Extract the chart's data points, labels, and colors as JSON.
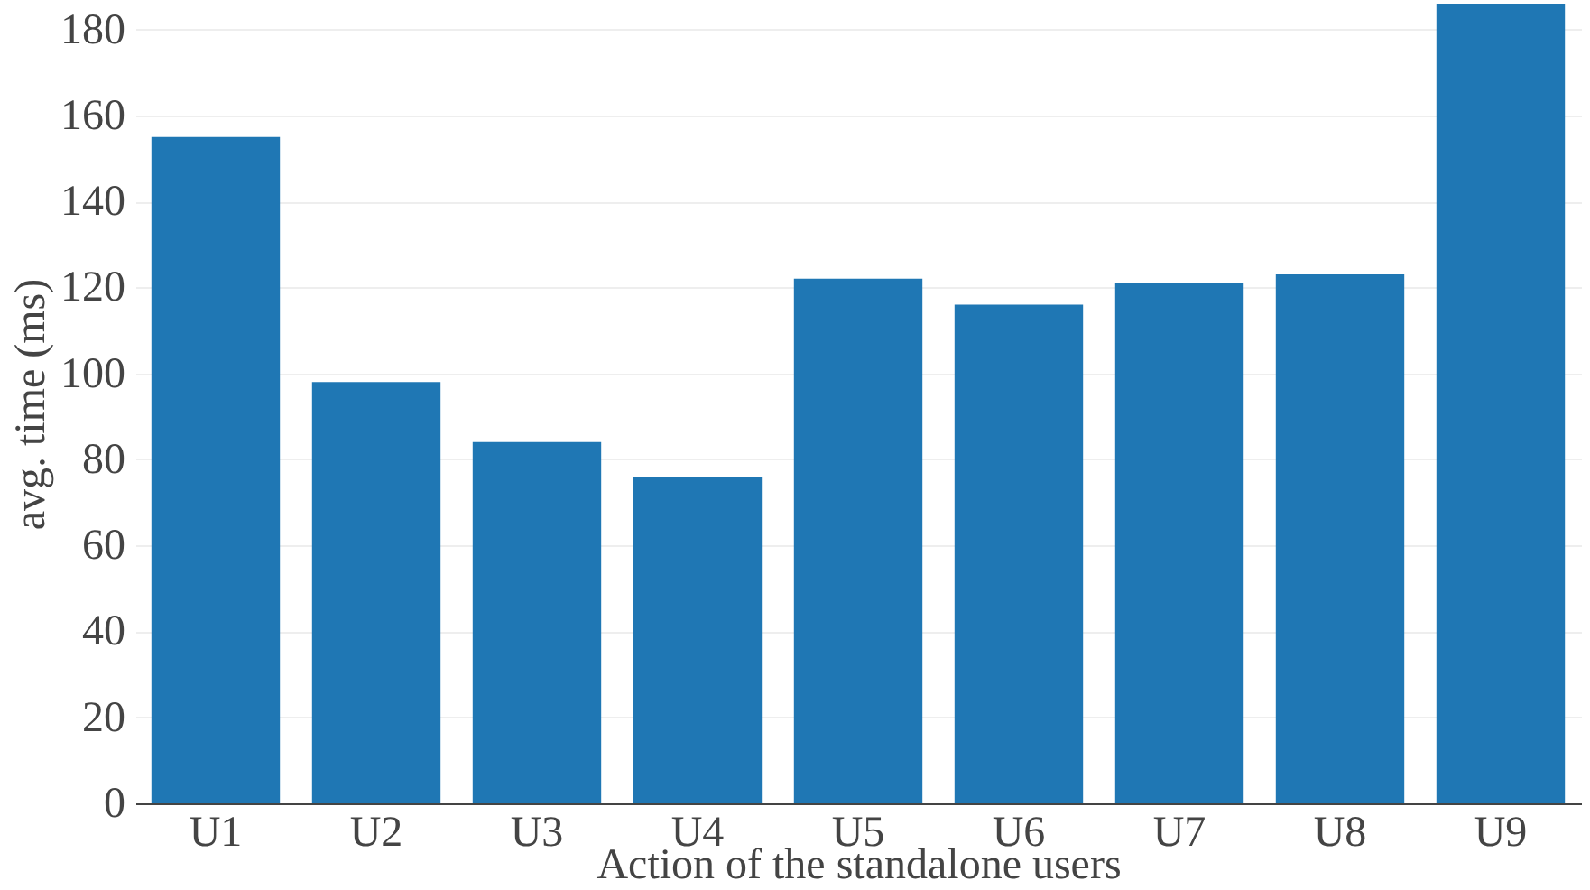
{
  "chart_data": {
    "type": "bar",
    "xlabel": "Action of the standalone users",
    "ylabel": "avg. time (ms)",
    "categories": [
      "U1",
      "U2",
      "U3",
      "U4",
      "U5",
      "U6",
      "U7",
      "U8",
      "U9"
    ],
    "values": [
      155,
      98,
      84,
      76,
      122,
      116,
      121,
      123,
      186
    ],
    "color": "#1f77b4",
    "ylim": [
      0,
      186
    ],
    "yticks": [
      0,
      20,
      40,
      60,
      80,
      100,
      120,
      140,
      160,
      180
    ],
    "grid": "y"
  }
}
